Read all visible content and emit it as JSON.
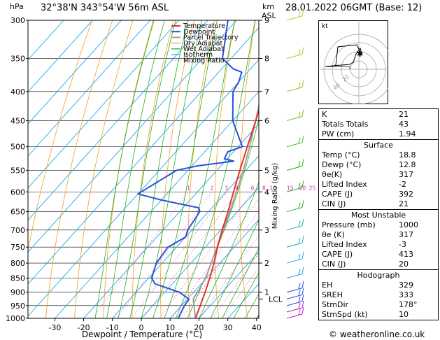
{
  "header": {
    "p_unit": "hPa",
    "location": "32°38'N 343°54'W 56m ASL",
    "alt_unit_1": "km",
    "alt_unit_2": "ASL",
    "datetime": "28.01.2022 06GMT (Base: 12)"
  },
  "footer": {
    "credit": "© weatheronline.co.uk"
  },
  "chart_data": {
    "type": "line",
    "xlabel": "Dewpoint / Temperature (°C)",
    "ylabel_right": "Mixing Ratio (g/kg)",
    "pressure_levels": [
      300,
      350,
      400,
      450,
      500,
      550,
      600,
      650,
      700,
      750,
      800,
      850,
      900,
      950,
      1000
    ],
    "x_ticks": [
      -30,
      -20,
      -10,
      0,
      10,
      20,
      30,
      40
    ],
    "km_ticks": [
      {
        "p": 300,
        "label": "9"
      },
      {
        "p": 350,
        "label": "8"
      },
      {
        "p": 400,
        "label": "7"
      },
      {
        "p": 450,
        "label": "6"
      },
      {
        "p": 550,
        "label": "5"
      },
      {
        "p": 600,
        "label": "4"
      },
      {
        "p": 700,
        "label": "3"
      },
      {
        "p": 800,
        "label": "2"
      },
      {
        "p": 900,
        "label": "1"
      }
    ],
    "lcl": {
      "p": 925,
      "label": "LCL"
    },
    "mixing_ratio_labels": [
      "1",
      "2",
      "3",
      "4",
      "6",
      "8",
      "10",
      "15",
      "20",
      "25"
    ],
    "legend": [
      "Temperature",
      "Dewpoint",
      "Parcel Trajectory",
      "Dry Adiabat",
      "Wet Adiabat",
      "Isotherm",
      "Mixing Ratio"
    ],
    "colors": {
      "temperature": "#e8302a",
      "dewpoint": "#2850e0",
      "parcel": "#a0a0a0",
      "dry_adiabat": "#f0a020",
      "wet_adiabat": "#20b020",
      "isotherm": "#20a8e8",
      "mixing_ratio": "#e020b0"
    },
    "temperature": [
      [
        1000,
        18.8
      ],
      [
        950,
        16.5
      ],
      [
        900,
        14.0
      ],
      [
        850,
        11.2
      ],
      [
        800,
        8.0
      ],
      [
        750,
        4.2
      ],
      [
        700,
        0.5
      ],
      [
        650,
        -3.2
      ],
      [
        600,
        -7.5
      ],
      [
        550,
        -12.0
      ],
      [
        500,
        -16.8
      ],
      [
        450,
        -22.0
      ],
      [
        400,
        -28.0
      ],
      [
        350,
        -34.5
      ],
      [
        300,
        -42.0
      ]
    ],
    "dewpoint": [
      [
        1000,
        12.8
      ],
      [
        950,
        11.0
      ],
      [
        925,
        10.5
      ],
      [
        900,
        5.0
      ],
      [
        870,
        -6.0
      ],
      [
        850,
        -9.0
      ],
      [
        800,
        -12.0
      ],
      [
        750,
        -13.0
      ],
      [
        720,
        -10.0
      ],
      [
        700,
        -11.5
      ],
      [
        650,
        -13.0
      ],
      [
        640,
        -14.5
      ],
      [
        620,
        -30.0
      ],
      [
        605,
        -40.0
      ],
      [
        550,
        -34.0
      ],
      [
        540,
        -28.0
      ],
      [
        530,
        -17.0
      ],
      [
        525,
        -21.0
      ],
      [
        510,
        -22.0
      ],
      [
        500,
        -18.5
      ],
      [
        450,
        -30.0
      ],
      [
        400,
        -39.0
      ],
      [
        385,
        -40.0
      ],
      [
        370,
        -42.0
      ],
      [
        365,
        -46.0
      ],
      [
        350,
        -53.0
      ],
      [
        300,
        -63.0
      ]
    ],
    "parcel": [
      [
        1000,
        18.8
      ],
      [
        925,
        12.0
      ],
      [
        850,
        9.8
      ],
      [
        800,
        7.0
      ],
      [
        750,
        4.0
      ],
      [
        700,
        0.8
      ],
      [
        650,
        -2.6
      ],
      [
        600,
        -6.5
      ],
      [
        550,
        -10.8
      ],
      [
        500,
        -16.0
      ],
      [
        450,
        -22.0
      ],
      [
        400,
        -29.0
      ],
      [
        350,
        -36.5
      ],
      [
        300,
        -45.0
      ]
    ],
    "hodograph": {
      "label": "kt",
      "ring_labels": [
        "20",
        "40"
      ]
    },
    "wind_barbs": [
      {
        "p": 1000,
        "color": "#c020c0"
      },
      {
        "p": 975,
        "color": "#c020c0"
      },
      {
        "p": 950,
        "color": "#2850e0"
      },
      {
        "p": 925,
        "color": "#2850e0"
      },
      {
        "p": 900,
        "color": "#2850e0"
      },
      {
        "p": 850,
        "color": "#20a8e8"
      },
      {
        "p": 800,
        "color": "#20a8e8"
      },
      {
        "p": 750,
        "color": "#20b0a8"
      },
      {
        "p": 700,
        "color": "#20b0a8"
      },
      {
        "p": 650,
        "color": "#20b020"
      },
      {
        "p": 600,
        "color": "#20b020"
      },
      {
        "p": 550,
        "color": "#20b020"
      },
      {
        "p": 500,
        "color": "#50c020"
      },
      {
        "p": 450,
        "color": "#80c020"
      },
      {
        "p": 400,
        "color": "#a0c820"
      },
      {
        "p": 350,
        "color": "#b0c820"
      },
      {
        "p": 300,
        "color": "#c0c820"
      }
    ]
  },
  "indices": {
    "rows": [
      {
        "k": "K",
        "v": "21"
      },
      {
        "k": "Totals Totals",
        "v": "43"
      },
      {
        "k": "PW (cm)",
        "v": "1.94"
      }
    ]
  },
  "surface": {
    "title": "Surface",
    "rows": [
      {
        "k": "Temp (°C)",
        "v": "18.8"
      },
      {
        "k": "Dewp (°C)",
        "v": "12.8"
      },
      {
        "k": "θe(K)",
        "v": "317"
      },
      {
        "k": "Lifted Index",
        "v": "-2"
      },
      {
        "k": "CAPE (J)",
        "v": "392"
      },
      {
        "k": "CIN (J)",
        "v": "21"
      }
    ]
  },
  "most_unstable": {
    "title": "Most Unstable",
    "rows": [
      {
        "k": "Pressure (mb)",
        "v": "1000"
      },
      {
        "k": "θe (K)",
        "v": "317"
      },
      {
        "k": "Lifted Index",
        "v": "-3"
      },
      {
        "k": "CAPE (J)",
        "v": "413"
      },
      {
        "k": "CIN (J)",
        "v": "20"
      }
    ]
  },
  "hodograph_table": {
    "title": "Hodograph",
    "rows": [
      {
        "k": "EH",
        "v": "329"
      },
      {
        "k": "SREH",
        "v": "333"
      },
      {
        "k": "StmDir",
        "v": "178°"
      },
      {
        "k": "StmSpd (kt)",
        "v": "10"
      }
    ]
  }
}
